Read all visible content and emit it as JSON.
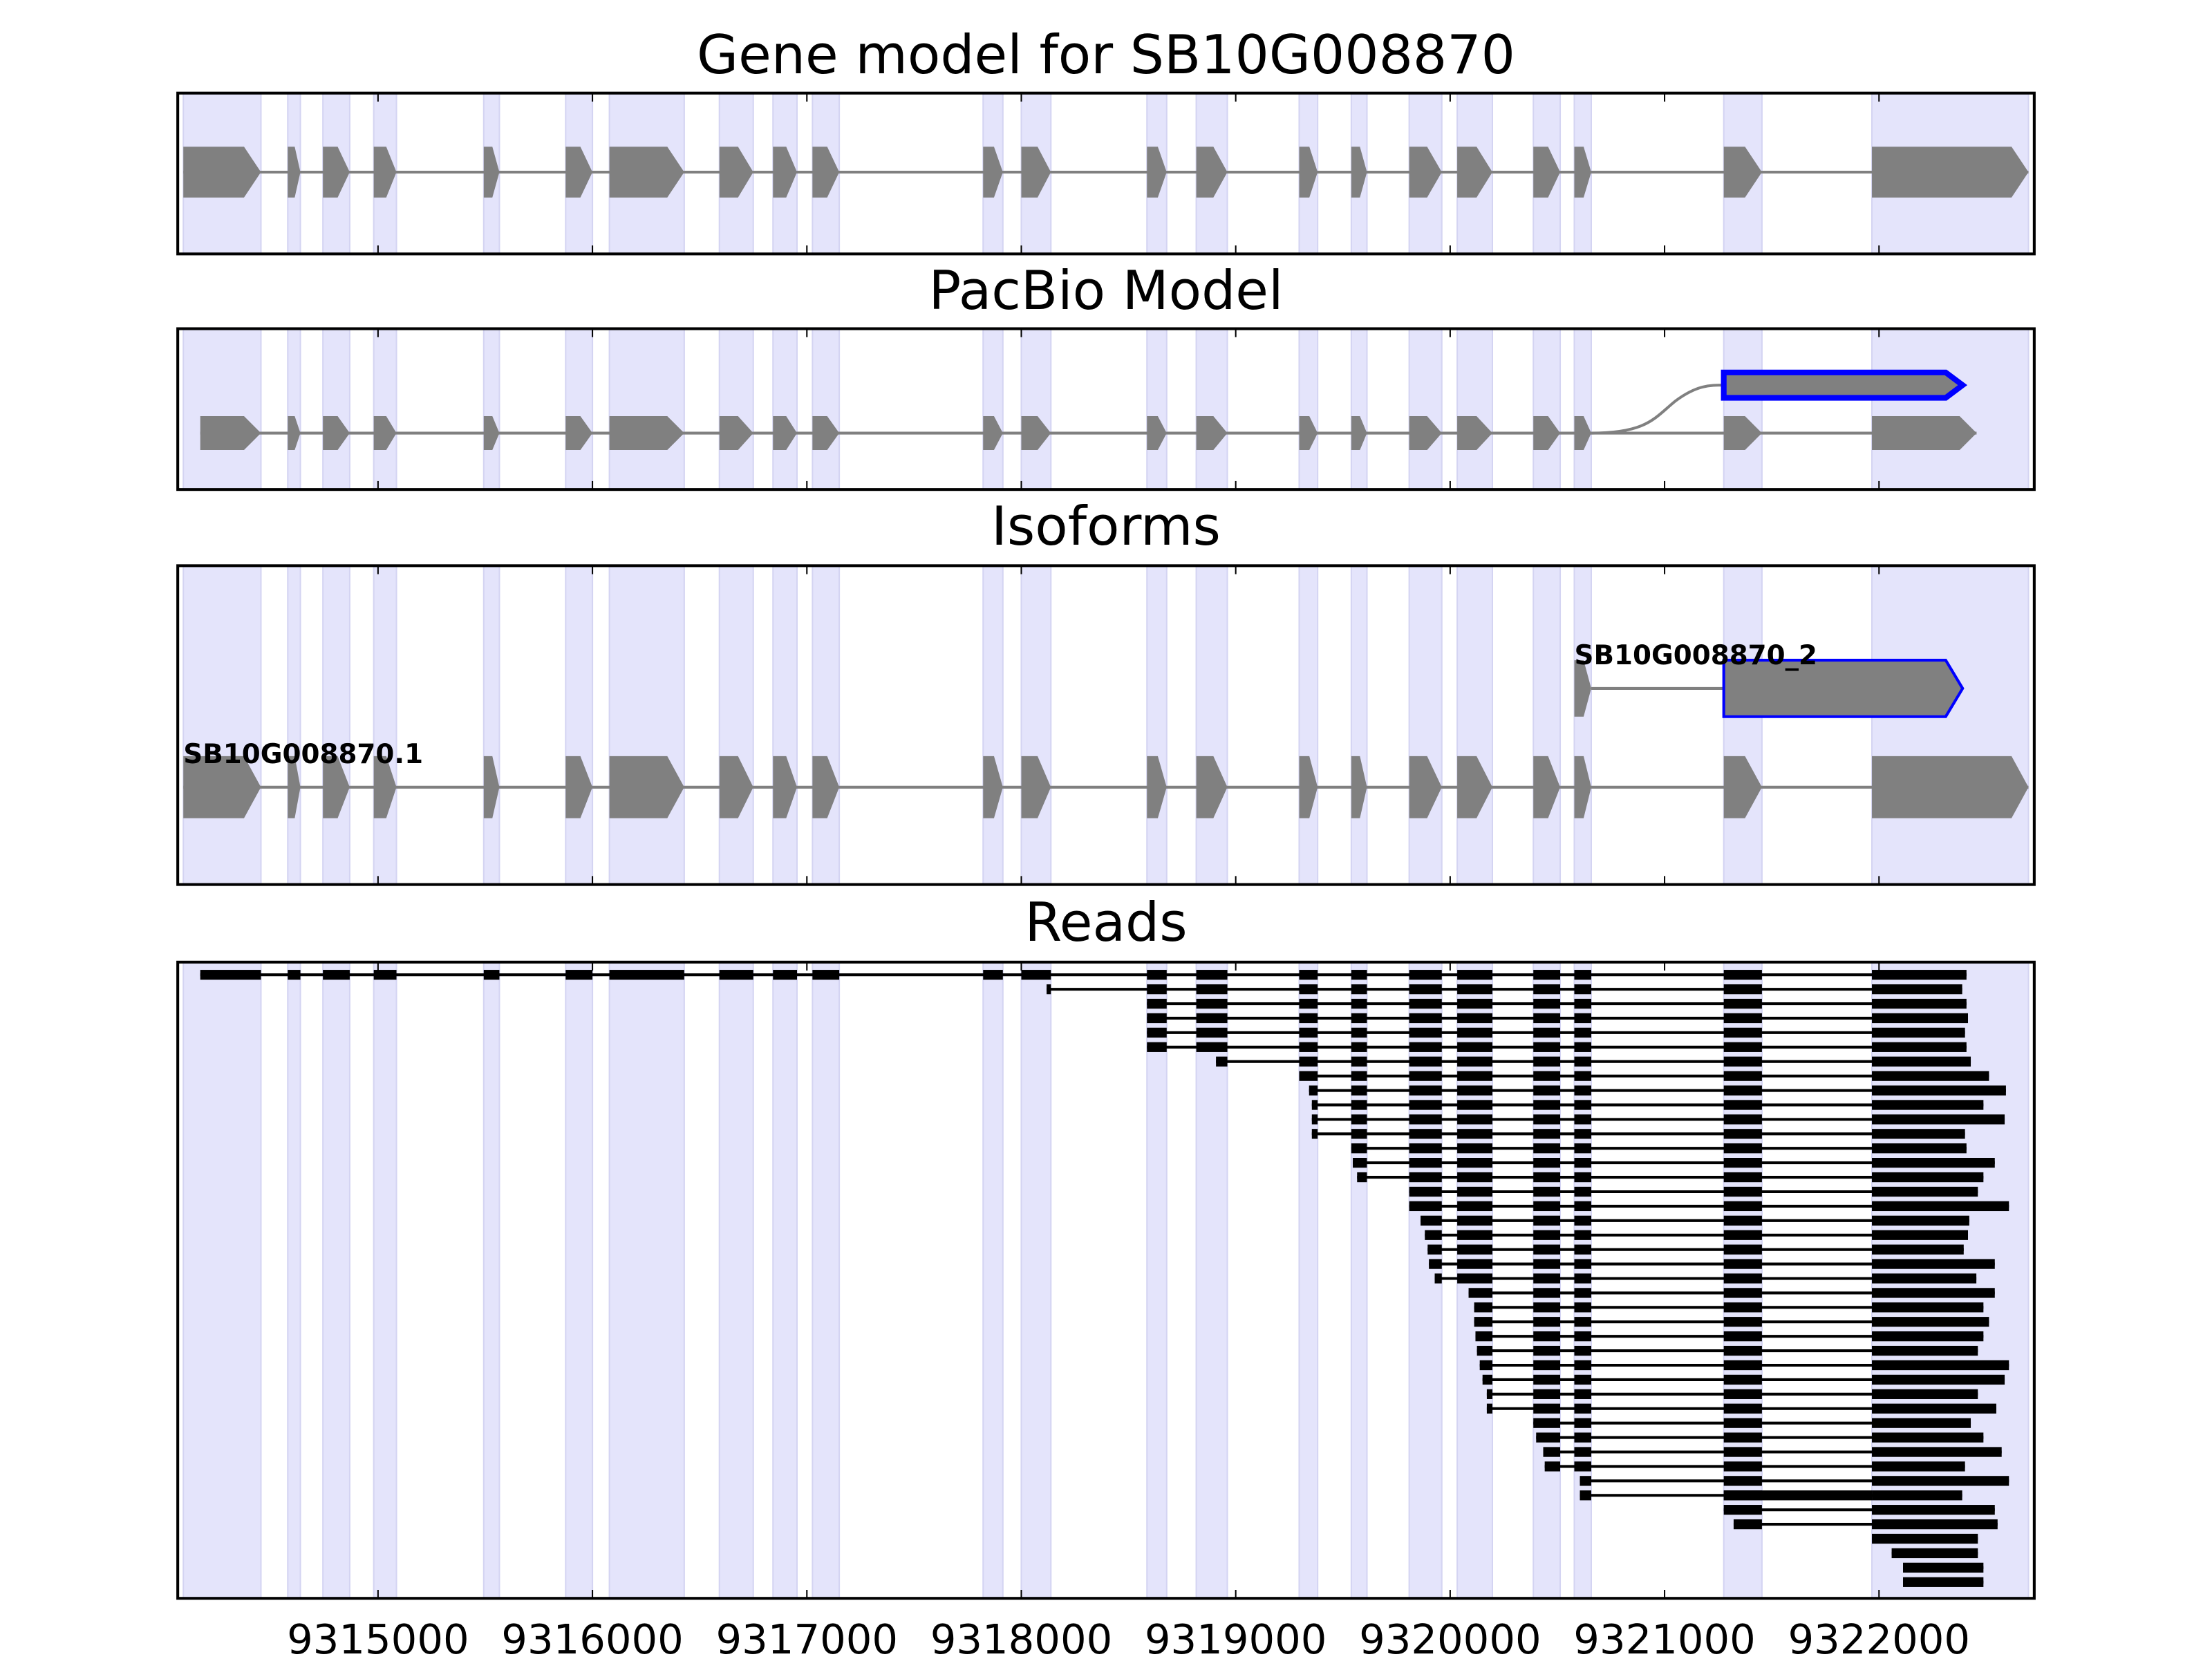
{
  "chart_data": {
    "type": "gene-track",
    "xlim": [
      9314066,
      9322724
    ],
    "x_ticks": [
      9315000,
      9316000,
      9317000,
      9318000,
      9319000,
      9320000,
      9321000,
      9322000
    ],
    "x_tick_labels": [
      "9315000",
      "9316000",
      "9317000",
      "9318000",
      "9319000",
      "9320000",
      "9321000",
      "9322000"
    ],
    "panels": [
      {
        "title": "Gene model for SB10G008870"
      },
      {
        "title": "PacBio Model"
      },
      {
        "title": "Isoforms"
      },
      {
        "title": "Reads"
      }
    ],
    "exons": [
      [
        9314092,
        9314454
      ],
      [
        9314579,
        9314638
      ],
      [
        9314743,
        9314868
      ],
      [
        9314980,
        9315086
      ],
      [
        9315493,
        9315566
      ],
      [
        9315875,
        9316000
      ],
      [
        9316079,
        9316428
      ],
      [
        9316592,
        9316750
      ],
      [
        9316842,
        9316954
      ],
      [
        9317026,
        9317151
      ],
      [
        9317822,
        9317914
      ],
      [
        9318000,
        9318138
      ],
      [
        9318586,
        9318678
      ],
      [
        9318816,
        9318961
      ],
      [
        9319296,
        9319382
      ],
      [
        9319539,
        9319612
      ],
      [
        9319809,
        9319961
      ],
      [
        9320033,
        9320197
      ],
      [
        9320388,
        9320513
      ],
      [
        9320579,
        9320658
      ],
      [
        9321276,
        9321454
      ],
      [
        9321967,
        9322697
      ]
    ],
    "pacbio_main": {
      "start": 9314171,
      "last_exon_end": 9322455
    },
    "pacbio_alt": {
      "branch_from_exon": 20,
      "exon": [
        9321276,
        9322390
      ]
    },
    "isoforms": [
      {
        "name": "SB10G008870.1",
        "exons": "all"
      },
      {
        "name": "SB10G008870_2",
        "exons": [
          [
            9320579,
            9320658
          ],
          [
            9321276,
            9322390
          ]
        ]
      }
    ],
    "reads": [
      [
        9314171,
        9322408
      ],
      [
        9318118,
        9322388
      ],
      [
        9318586,
        9322408
      ],
      [
        9318586,
        9322415
      ],
      [
        9318586,
        9322401
      ],
      [
        9318586,
        9322408
      ],
      [
        9318908,
        9322428
      ],
      [
        9319296,
        9322513
      ],
      [
        9319342,
        9322592
      ],
      [
        9319355,
        9322487
      ],
      [
        9319355,
        9322586
      ],
      [
        9319355,
        9322401
      ],
      [
        9319539,
        9322408
      ],
      [
        9319546,
        9322540
      ],
      [
        9319566,
        9322487
      ],
      [
        9319809,
        9322461
      ],
      [
        9319809,
        9322606
      ],
      [
        9319862,
        9322421
      ],
      [
        9319882,
        9322415
      ],
      [
        9319895,
        9322395
      ],
      [
        9319901,
        9322540
      ],
      [
        9319928,
        9322454
      ],
      [
        9320086,
        9322540
      ],
      [
        9320112,
        9322487
      ],
      [
        9320112,
        9322513
      ],
      [
        9320118,
        9322487
      ],
      [
        9320125,
        9322461
      ],
      [
        9320138,
        9322606
      ],
      [
        9320151,
        9322586
      ],
      [
        9320171,
        9322461
      ],
      [
        9320171,
        9322547
      ],
      [
        9320388,
        9322428
      ],
      [
        9320401,
        9322487
      ],
      [
        9320434,
        9322572
      ],
      [
        9320441,
        9322401
      ],
      [
        9320605,
        9322606
      ],
      [
        9320605,
        9322388,
        "retained"
      ],
      [
        9321276,
        9322540
      ],
      [
        9321322,
        9322553
      ],
      [
        9321967,
        9322461
      ],
      [
        9322059,
        9322461
      ],
      [
        9322112,
        9322487
      ],
      [
        9322112,
        9322487
      ]
    ],
    "colors": {
      "exon": "#808080",
      "highlight": "#0000ff",
      "band": "#e4e4fb",
      "band_edge": "#d4d4f2",
      "read": "#000000"
    }
  }
}
